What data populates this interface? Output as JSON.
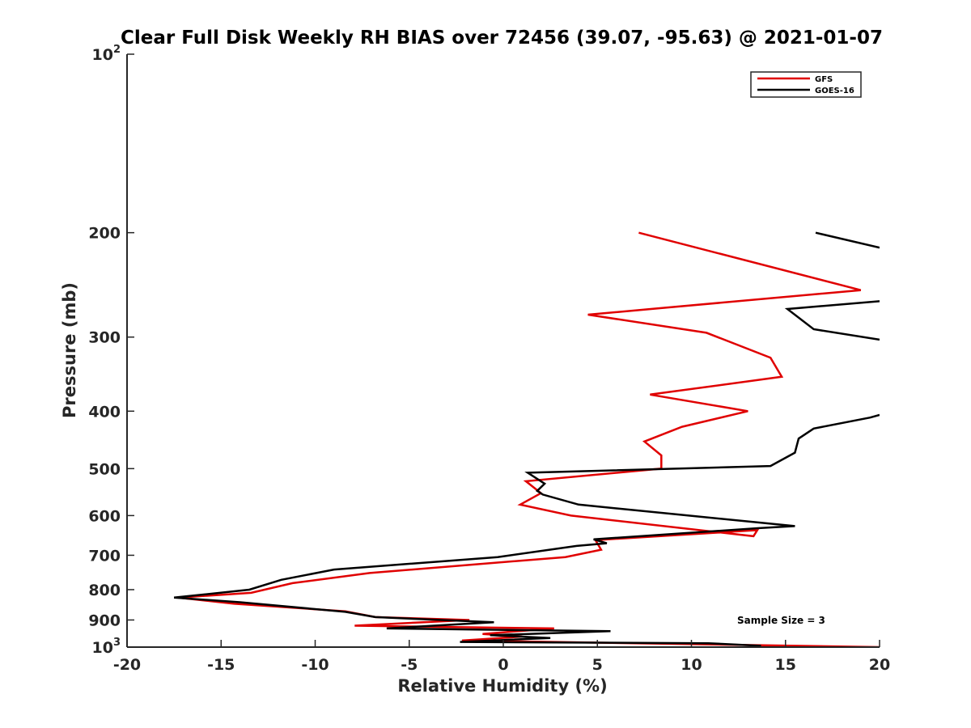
{
  "chart_data": {
    "type": "line",
    "title": "Clear Full Disk Weekly RH BIAS over 72456 (39.07, -95.63) @ 2021-01-07",
    "xlabel": "Relative Humidity (%)",
    "ylabel": "Pressure (mb)",
    "xlim": [
      -20,
      20
    ],
    "ylim": [
      100,
      1000
    ],
    "yscale": "log",
    "y_reversed": true,
    "grid": false,
    "legend_position": "top-right",
    "xticks": [
      -20,
      -15,
      -10,
      -5,
      0,
      5,
      10,
      15,
      20
    ],
    "xtick_labels": [
      "-20",
      "-15",
      "-10",
      "-5",
      "0",
      "5",
      "10",
      "15",
      "20"
    ],
    "yticks": [
      100,
      200,
      300,
      400,
      500,
      600,
      700,
      800,
      900,
      1000
    ],
    "ytick_labels": [
      {
        "base": "10",
        "exp": "2"
      },
      {
        "base": "200"
      },
      {
        "base": "300"
      },
      {
        "base": "400"
      },
      {
        "base": "500"
      },
      {
        "base": "600"
      },
      {
        "base": "700"
      },
      {
        "base": "800"
      },
      {
        "base": "900"
      },
      {
        "base": "10",
        "exp": "3"
      }
    ],
    "annotation": "Sample Size = 3",
    "series": [
      {
        "name": "GFS",
        "color": "#e00000",
        "points": [
          [
            7.2,
            200
          ],
          [
            19.0,
            250
          ],
          [
            4.5,
            275
          ],
          [
            10.8,
            295
          ],
          [
            14.2,
            325
          ],
          [
            14.8,
            350
          ],
          [
            7.8,
            375
          ],
          [
            13.0,
            400
          ],
          [
            9.5,
            425
          ],
          [
            7.5,
            450
          ],
          [
            8.4,
            475
          ],
          [
            8.4,
            500
          ],
          [
            1.2,
            525
          ],
          [
            2.0,
            550
          ],
          [
            0.9,
            575
          ],
          [
            3.6,
            600
          ],
          [
            13.3,
            650
          ],
          [
            13.5,
            635
          ],
          [
            4.9,
            660
          ],
          [
            5.2,
            685
          ],
          [
            3.3,
            705
          ],
          [
            -7.1,
            750
          ],
          [
            -11.2,
            780
          ],
          [
            -13.4,
            810
          ],
          [
            -17.3,
            825
          ],
          [
            -14.3,
            845
          ],
          [
            -8.4,
            870
          ],
          [
            -6.8,
            890
          ],
          [
            -1.8,
            900
          ],
          [
            -7.9,
            920
          ],
          [
            2.7,
            930
          ],
          [
            -1.1,
            950
          ],
          [
            1.0,
            960
          ],
          [
            -2.2,
            975
          ],
          [
            20.0,
            1000
          ]
        ]
      },
      {
        "name": "GOES-16",
        "color": "#000000",
        "segments": [
          [
            [
              16.6,
              200
            ],
            [
              20.0,
              212
            ]
          ],
          [
            [
              20.0,
              261
            ],
            [
              15.1,
              269
            ],
            [
              16.5,
              291
            ],
            [
              20.0,
              303
            ]
          ],
          [
            [
              20.0,
              406
            ],
            [
              19.5,
              410
            ],
            [
              16.5,
              428
            ],
            [
              15.7,
              445
            ],
            [
              15.5,
              470
            ],
            [
              14.2,
              495
            ],
            [
              1.3,
              508
            ],
            [
              2.2,
              530
            ],
            [
              1.8,
              545
            ],
            [
              2.1,
              553
            ],
            [
              4.0,
              575
            ],
            [
              15.5,
              625
            ],
            [
              13.6,
              630
            ],
            [
              4.8,
              658
            ],
            [
              5.5,
              668
            ],
            [
              3.9,
              675
            ],
            [
              -0.3,
              705
            ],
            [
              -9.0,
              740
            ],
            [
              -11.8,
              770
            ],
            [
              -13.5,
              800
            ],
            [
              -17.5,
              825
            ],
            [
              -14.0,
              840
            ],
            [
              -8.4,
              872
            ],
            [
              -6.8,
              890
            ],
            [
              -0.5,
              908
            ],
            [
              -6.2,
              930
            ],
            [
              5.7,
              940
            ],
            [
              -0.7,
              955
            ],
            [
              2.5,
              965
            ],
            [
              -2.3,
              980
            ],
            [
              10.9,
              985
            ],
            [
              13.7,
              995
            ]
          ]
        ]
      }
    ]
  }
}
